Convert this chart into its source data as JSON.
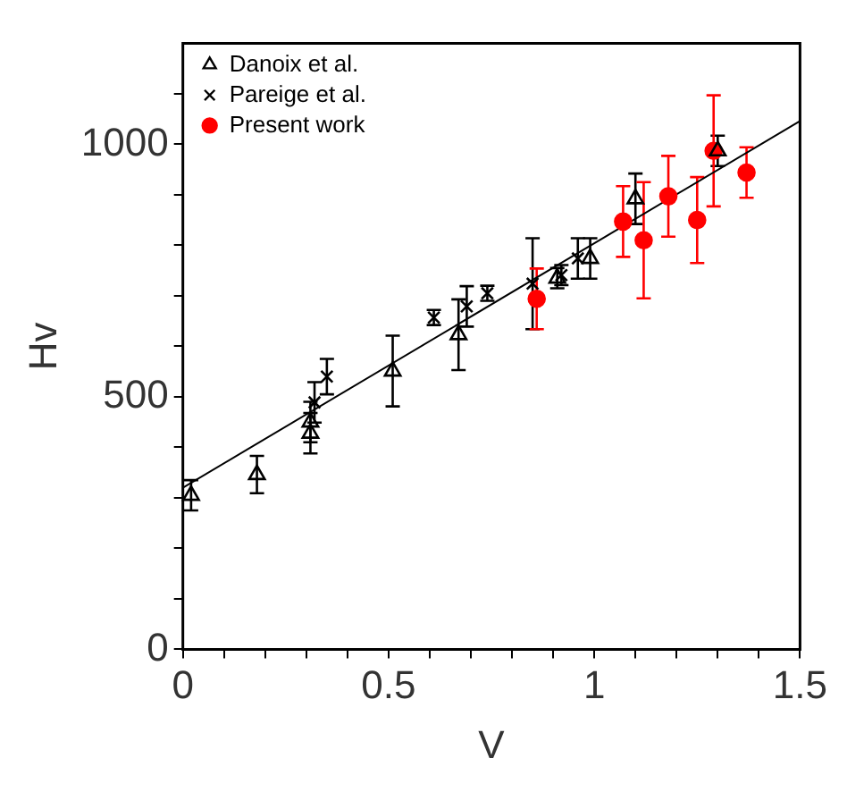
{
  "chart_data": {
    "type": "scatter",
    "xlabel": "V",
    "ylabel": "Hv",
    "xlim": [
      0,
      1.5
    ],
    "ylim": [
      0,
      1200
    ],
    "xticks": [
      0,
      {
        "value": 0.1,
        "label": null
      },
      {
        "value": 0.2,
        "label": null
      },
      {
        "value": 0.3,
        "label": null
      },
      {
        "value": 0.4,
        "label": null
      },
      0.5,
      {
        "value": 0.6,
        "label": null
      },
      {
        "value": 0.7,
        "label": null
      },
      {
        "value": 0.8,
        "label": null
      },
      {
        "value": 0.9,
        "label": null
      },
      1,
      {
        "value": 1.1,
        "label": null
      },
      {
        "value": 1.2,
        "label": null
      },
      {
        "value": 1.3,
        "label": null
      },
      {
        "value": 1.4,
        "label": null
      },
      1.5
    ],
    "yticks": [
      0,
      {
        "value": 100,
        "label": null
      },
      {
        "value": 200,
        "label": null
      },
      {
        "value": 300,
        "label": null
      },
      {
        "value": 400,
        "label": null
      },
      500,
      {
        "value": 600,
        "label": null
      },
      {
        "value": 700,
        "label": null
      },
      {
        "value": 800,
        "label": null
      },
      {
        "value": 900,
        "label": null
      },
      1000,
      {
        "value": 1100,
        "label": null
      }
    ],
    "grid": false,
    "legend": "top left",
    "series": [
      {
        "name": "Danoix et al.",
        "color": "#000000",
        "marker": "triangle",
        "x": [
          0.02,
          0.18,
          0.31,
          0.31,
          0.51,
          0.67,
          0.91,
          0.99,
          1.1,
          1.3
        ],
        "values": [
          305,
          346,
          428,
          450,
          551,
          623,
          735,
          774,
          892,
          987
        ],
        "errors": [
          30,
          37,
          40,
          40,
          70,
          70,
          20,
          40,
          50,
          30
        ]
      },
      {
        "name": "Pareige et al.",
        "color": "#000000",
        "marker": "cross",
        "x": [
          0.32,
          0.35,
          0.61,
          0.69,
          0.74,
          0.85,
          0.92,
          0.96
        ],
        "values": [
          489,
          540,
          657,
          679,
          705,
          724,
          741,
          774
        ],
        "errors": [
          40,
          35,
          15,
          40,
          15,
          90,
          20,
          40
        ]
      },
      {
        "name": "Present work",
        "color": "#ff0000",
        "marker": "circle",
        "x": [
          0.86,
          1.07,
          1.12,
          1.18,
          1.25,
          1.29,
          1.37
        ],
        "values": [
          694,
          847,
          810,
          897,
          850,
          987,
          944
        ],
        "errors": [
          60,
          70,
          115,
          80,
          85,
          110,
          50
        ]
      },
      {
        "type": "line",
        "color": "#000000",
        "marker": "none",
        "x": [
          0,
          1.5
        ],
        "values": [
          320,
          1046
        ]
      }
    ]
  }
}
